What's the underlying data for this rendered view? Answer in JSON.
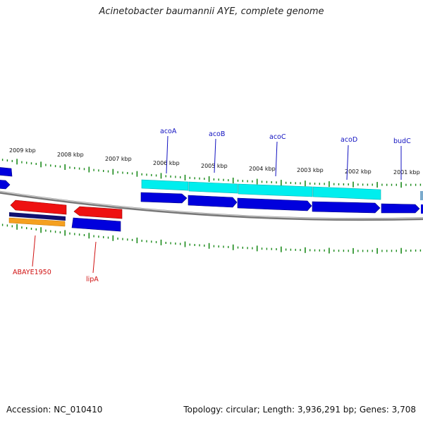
{
  "header": {
    "title": "Acinetobacter baumannii AYE, complete genome"
  },
  "footer": {
    "accession": "Accession: NC_010410",
    "summary": "Topology: circular; Length: 3,936,291 bp; Genes: 3,708"
  },
  "colors": {
    "backbone": "#888888",
    "tick": "#1a8a1a",
    "forward_gene": "#0000dd",
    "reverse_gene": "#ee1111",
    "highlight": "#00eeee",
    "navy": "#101070",
    "orange": "#f5a020",
    "blue_label": "#1010c0",
    "red_label": "#d01010"
  },
  "scale": {
    "kbp_labels": [
      "2009 kbp",
      "2008 kbp",
      "2007 kbp",
      "2006 kbp",
      "2005 kbp",
      "2004 kbp",
      "2003 kbp",
      "2002 kbp",
      "2001 kbp"
    ]
  },
  "genes": {
    "labeled_forward": [
      "acoA",
      "acoB",
      "acoC",
      "acoD",
      "budC"
    ],
    "labeled_reverse": [
      "ABAYE1950",
      "lipA"
    ]
  }
}
